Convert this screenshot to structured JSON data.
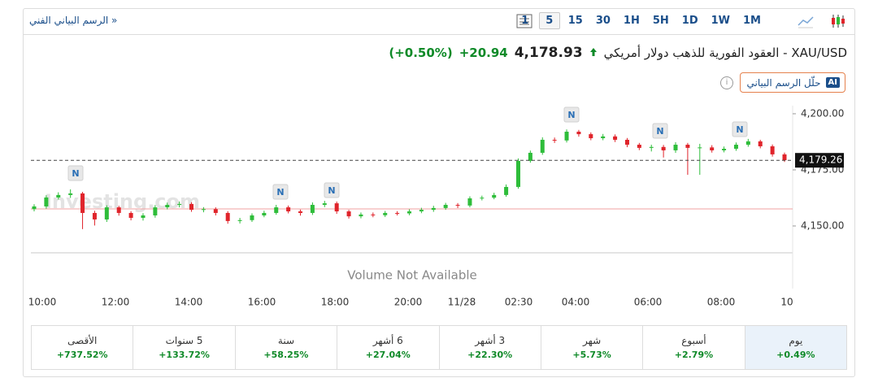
{
  "toolbar": {
    "technical_link": "الرسم البياني الفني »",
    "intervals": [
      "1M",
      "1W",
      "1D",
      "5H",
      "1H",
      "30",
      "15",
      "5",
      "1"
    ],
    "active_interval": "5"
  },
  "header": {
    "title": "XAU/USD - العقود الفورية للذهب دولار أمريكي",
    "price": "4,178.93",
    "change": "+20.94",
    "change_pct": "(+0.50%)",
    "ai_badge": "AI",
    "ai_button": "حلّل الرسم البياني"
  },
  "chart_data": {
    "type": "candlestick",
    "watermark": "Investing.com",
    "volume_note": "Volume Not Available",
    "xtick_labels": [
      "10:00",
      "12:00",
      "14:00",
      "16:00",
      "18:00",
      "20:00",
      "11/28",
      "02:30",
      "04:00",
      "06:00",
      "08:00",
      "10"
    ],
    "ylim": [
      4138.4,
      4203.6
    ],
    "yticks": [
      {
        "value": 4150,
        "label": "4,150.00"
      },
      {
        "value": 4175,
        "label": "4,175.00"
      },
      {
        "value": 4200,
        "label": "4,200.00"
      }
    ],
    "last_price": {
      "value": 4179.26,
      "label": "4,179.26"
    },
    "prev_close": 4157.6,
    "up_color": "#2ebd3a",
    "down_color": "#e0242b",
    "news_markers": [
      "N",
      "N",
      "N",
      "N",
      "N",
      "N"
    ],
    "open": [
      4157.5,
      4158.7,
      4162.7,
      4163.8,
      4164.5,
      4155.8,
      4152.9,
      4158.3,
      4155.8,
      4153.6,
      4154.7,
      4158.3,
      4159.4,
      4159.8,
      4157.2,
      4157.5,
      4155.8,
      4152.2,
      4152.6,
      4154.7,
      4155.8,
      4158.3,
      4156.5,
      4155.8,
      4159.4,
      4160.1,
      4156.5,
      4154.3,
      4155.1,
      4154.8,
      4155.8,
      4155.6,
      4156.5,
      4157.2,
      4158.0,
      4159.4,
      4159.1,
      4162.3,
      4162.6,
      4163.8,
      4167.4,
      4179.0,
      4182.6,
      4188.4,
      4188.1,
      4192.0,
      4190.9,
      4189.1,
      4189.9,
      4188.4,
      4186.2,
      4184.8,
      4185.2,
      4183.7,
      4186.2,
      4184.8,
      4185.0,
      4183.7,
      4184.4,
      4186.2,
      4187.7,
      4185.5,
      4181.9
    ],
    "high": [
      4159.7,
      4163.7,
      4165.0,
      4166.3,
      4165.2,
      4156.8,
      4159.2,
      4159.0,
      4156.6,
      4155.7,
      4159.3,
      4160.4,
      4160.9,
      4160.6,
      4158.4,
      4158.3,
      4156.6,
      4153.6,
      4155.6,
      4156.8,
      4159.4,
      4159.1,
      4157.3,
      4160.5,
      4161.2,
      4160.9,
      4157.2,
      4156.0,
      4156.0,
      4156.7,
      4156.6,
      4157.4,
      4158.1,
      4159.0,
      4160.3,
      4160.2,
      4163.2,
      4163.5,
      4164.8,
      4168.5,
      4180.1,
      4183.6,
      4189.5,
      4189.4,
      4193.0,
      4192.8,
      4191.7,
      4191.0,
      4190.8,
      4189.2,
      4187.0,
      4186.2,
      4186.1,
      4187.3,
      4187.0,
      4186.6,
      4186.0,
      4185.4,
      4187.2,
      4188.8,
      4188.4,
      4186.3,
      4182.7
    ],
    "low": [
      4156.5,
      4157.7,
      4161.8,
      4162.5,
      4148.6,
      4150.2,
      4151.8,
      4154.6,
      4152.5,
      4152.4,
      4153.7,
      4157.4,
      4158.3,
      4156.3,
      4156.1,
      4154.7,
      4151.0,
      4151.1,
      4151.8,
      4153.9,
      4155.0,
      4155.6,
      4154.6,
      4154.9,
      4158.4,
      4155.4,
      4153.3,
      4153.4,
      4153.9,
      4154.0,
      4154.7,
      4154.8,
      4155.7,
      4156.3,
      4157.2,
      4158.0,
      4158.3,
      4161.4,
      4161.9,
      4163.0,
      4166.6,
      4178.2,
      4181.7,
      4187.0,
      4187.2,
      4189.8,
      4188.2,
      4188.2,
      4187.4,
      4185.1,
      4183.8,
      4183.2,
      4180.5,
      4182.6,
      4172.8,
      4172.8,
      4182.7,
      4182.8,
      4183.5,
      4185.3,
      4184.6,
      4180.9,
      4178.5
    ],
    "close": [
      4158.7,
      4162.7,
      4163.8,
      4164.5,
      4155.8,
      4152.9,
      4158.3,
      4155.8,
      4153.6,
      4154.7,
      4158.3,
      4159.4,
      4159.8,
      4157.2,
      4157.5,
      4155.8,
      4152.2,
      4152.6,
      4154.7,
      4155.8,
      4158.3,
      4156.5,
      4155.8,
      4159.4,
      4160.1,
      4156.5,
      4154.3,
      4155.1,
      4154.8,
      4155.8,
      4155.6,
      4156.5,
      4157.2,
      4158.0,
      4159.4,
      4159.1,
      4162.3,
      4162.6,
      4163.8,
      4167.4,
      4179.0,
      4182.6,
      4188.4,
      4188.1,
      4192.0,
      4190.9,
      4189.1,
      4189.9,
      4188.4,
      4186.2,
      4184.8,
      4185.2,
      4183.7,
      4186.2,
      4184.8,
      4185.0,
      4183.7,
      4184.4,
      4186.2,
      4187.7,
      4185.5,
      4181.9,
      4179.3
    ]
  },
  "performance": [
    {
      "period": "يوم",
      "change": "+0.49%"
    },
    {
      "period": "أسبوع",
      "change": "+2.79%"
    },
    {
      "period": "شهر",
      "change": "+5.73%"
    },
    {
      "period": "3 أشهر",
      "change": "+22.30%"
    },
    {
      "period": "6 أشهر",
      "change": "+27.04%"
    },
    {
      "period": "سنة",
      "change": "+58.25%"
    },
    {
      "period": "5 سنوات",
      "change": "+133.72%"
    },
    {
      "period": "الأقصى",
      "change": "+737.52%"
    }
  ]
}
